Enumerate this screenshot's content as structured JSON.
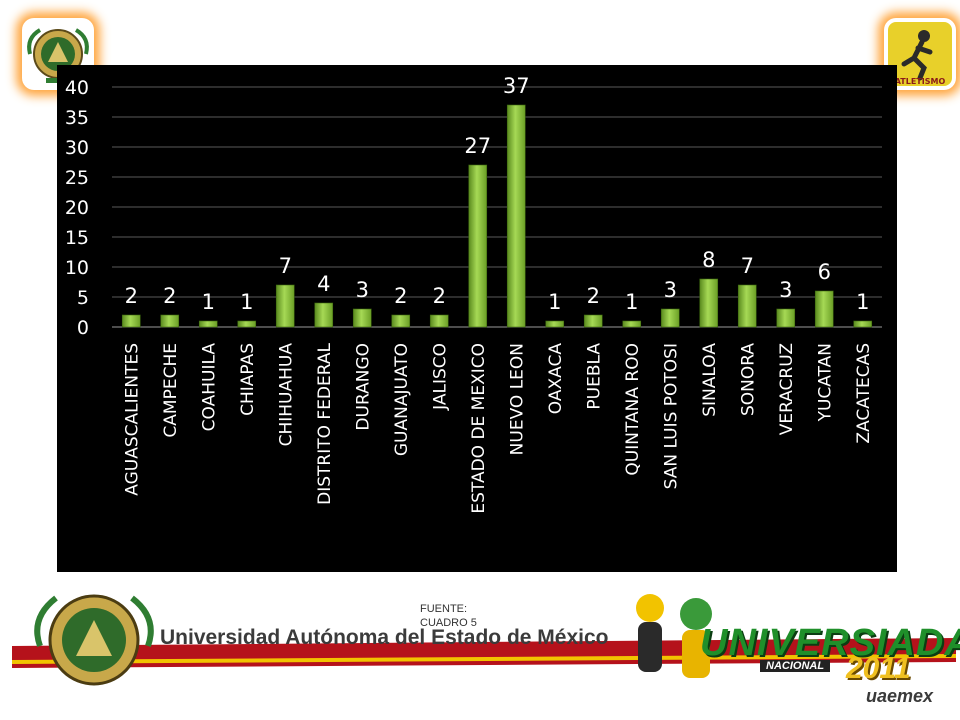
{
  "logos": {
    "left": "university-seal-logo",
    "right": "atletismo-logo",
    "right_text": "ATLETISMO"
  },
  "colors": {
    "panel": "#000000",
    "bar": "#8cc63f",
    "bar_dark": "#5a8a1e",
    "text": "#ffffff",
    "grid": "#5a5a5a"
  },
  "chart_data": {
    "type": "bar",
    "title": "",
    "xlabel": "",
    "ylabel": "",
    "ylim": [
      0,
      40
    ],
    "yticks": [
      0,
      5,
      10,
      15,
      20,
      25,
      30,
      35,
      40
    ],
    "grid": true,
    "legend": "none",
    "categories": [
      "AGUASCALIENTES",
      "CAMPECHE",
      "COAHUILA",
      "CHIAPAS",
      "CHIHUAHUA",
      "DISTRITO FEDERAL",
      "DURANGO",
      "GUANAJUATO",
      "JALISCO",
      "ESTADO DE MEXICO",
      "NUEVO LEON",
      "OAXACA",
      "PUEBLA",
      "QUINTANA ROO",
      "SAN LUIS POTOSI",
      "SINALOA",
      "SONORA",
      "VERACRUZ",
      "YUCATAN",
      "ZACATECAS"
    ],
    "values": [
      2,
      2,
      1,
      1,
      7,
      4,
      3,
      2,
      2,
      27,
      37,
      1,
      2,
      1,
      3,
      8,
      7,
      3,
      6,
      1
    ]
  },
  "source": {
    "line1": "FUENTE:",
    "line2": "CUADRO 5"
  },
  "footer": {
    "university": "Universidad Autónoma del Estado de México",
    "event_word": "UNIVERSIADA",
    "event_sub": "NACIONAL",
    "event_year": "2011",
    "host": "uaemex"
  }
}
